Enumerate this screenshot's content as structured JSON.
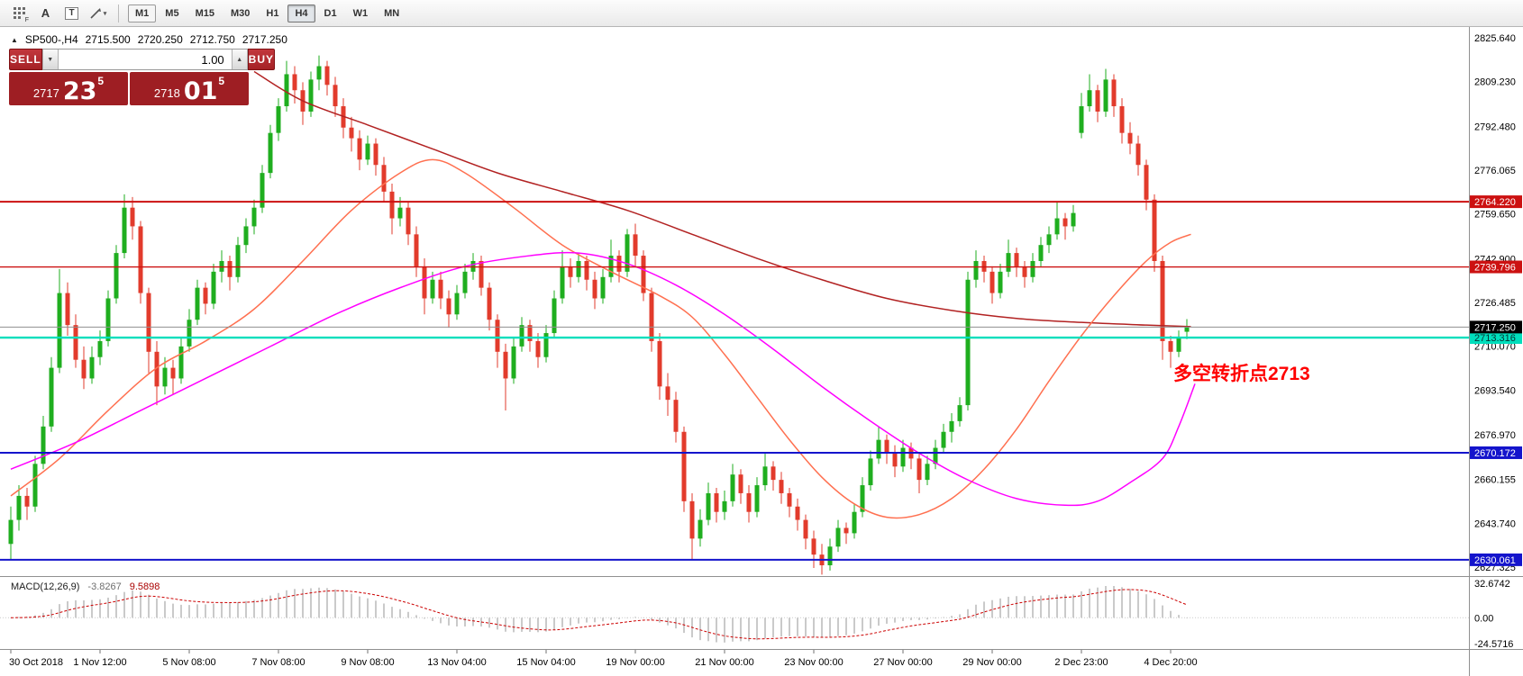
{
  "toolbar": {
    "tools": {
      "grid_badge": "F",
      "arrow_label": "A",
      "text_label": "T"
    },
    "timeframes": [
      {
        "label": "M1",
        "state": "outlined"
      },
      {
        "label": "M5",
        "state": ""
      },
      {
        "label": "M15",
        "state": ""
      },
      {
        "label": "M30",
        "state": ""
      },
      {
        "label": "H1",
        "state": ""
      },
      {
        "label": "H4",
        "state": "active"
      },
      {
        "label": "D1",
        "state": ""
      },
      {
        "label": "W1",
        "state": ""
      },
      {
        "label": "MN",
        "state": ""
      }
    ]
  },
  "chart_header": {
    "symbol_period": "SP500-,H4",
    "open": "2715.500",
    "high": "2720.250",
    "low": "2712.750",
    "close": "2717.250"
  },
  "trade_widget": {
    "sell_label": "SELL",
    "buy_label": "BUY",
    "volume": "1.00",
    "sell_price": {
      "small": "2717",
      "big": "23",
      "sup": "5"
    },
    "buy_price": {
      "small": "2718",
      "big": "01",
      "sup": "5"
    },
    "colors": {
      "button": "#c2383d",
      "button_border": "#7e1013",
      "panel": "#9e1e23"
    }
  },
  "annotation": {
    "text": "多空转折点2713",
    "color": "#ff0000"
  },
  "chart_data": {
    "type": "candlestick",
    "symbol": "SP500-",
    "timeframe": "H4",
    "up_color": "#1fae1f",
    "down_color": "#e23b2c",
    "ylim": [
      2624,
      2830
    ],
    "price_ticks": [
      "2825.640",
      "2809.230",
      "2792.480",
      "2776.065",
      "2759.650",
      "2742.900",
      "2726.485",
      "2710.070",
      "2693.540",
      "2676.970",
      "2660.155",
      "2643.740",
      "2627.325"
    ],
    "current_price": {
      "value": 2717.25,
      "label": "2717.250",
      "line_color": "#8f8f8f",
      "label_bg": "#000000",
      "label_fg": "#ffffff"
    },
    "hlines": [
      {
        "value": 2764.22,
        "label": "2764.220",
        "color": "#cc1111",
        "width": 2,
        "label_bg": "#cc1111",
        "label_fg": "#ffffff"
      },
      {
        "value": 2739.796,
        "label": "2739.796",
        "color": "#cc1111",
        "width": 1.4,
        "label_bg": "#cc1111",
        "label_fg": "#ffffff"
      },
      {
        "value": 2713.316,
        "label": "2713.316",
        "color": "#00debc",
        "width": 2.4,
        "label_bg": "#00debc",
        "label_fg": "#053535"
      },
      {
        "value": 2670.172,
        "label": "2670.172",
        "color": "#1414cc",
        "width": 2,
        "label_bg": "#1414cc",
        "label_fg": "#ffffff"
      },
      {
        "value": 2630.061,
        "label": "2630.061",
        "color": "#1414cc",
        "width": 2,
        "label_bg": "#1414cc",
        "label_fg": "#ffffff"
      }
    ],
    "moving_averages": [
      {
        "name": "slow-ma-red",
        "color": "#b22222",
        "points": [
          [
            30,
            2813
          ],
          [
            36,
            2802
          ],
          [
            44,
            2793
          ],
          [
            52,
            2784
          ],
          [
            60,
            2775
          ],
          [
            68,
            2768
          ],
          [
            76,
            2761
          ],
          [
            84,
            2752
          ],
          [
            92,
            2743
          ],
          [
            100,
            2735
          ],
          [
            108,
            2728
          ],
          [
            116,
            2723.5
          ],
          [
            124,
            2720.5
          ],
          [
            132,
            2719
          ],
          [
            140,
            2718
          ],
          [
            145.5,
            2717.4
          ]
        ]
      },
      {
        "name": "mid-ma-orange",
        "color": "#ff7050",
        "points": [
          [
            0,
            2654
          ],
          [
            6,
            2668
          ],
          [
            12,
            2686
          ],
          [
            18,
            2702
          ],
          [
            24,
            2712
          ],
          [
            30,
            2724
          ],
          [
            36,
            2742
          ],
          [
            42,
            2761
          ],
          [
            48,
            2775
          ],
          [
            52,
            2780
          ],
          [
            56,
            2775
          ],
          [
            62,
            2762
          ],
          [
            68,
            2748
          ],
          [
            74,
            2738
          ],
          [
            80,
            2729
          ],
          [
            84,
            2721
          ],
          [
            88,
            2707
          ],
          [
            92,
            2691
          ],
          [
            96,
            2675
          ],
          [
            100,
            2661
          ],
          [
            104,
            2651
          ],
          [
            108,
            2646
          ],
          [
            112,
            2647
          ],
          [
            116,
            2653
          ],
          [
            120,
            2664
          ],
          [
            124,
            2679
          ],
          [
            128,
            2697
          ],
          [
            132,
            2714
          ],
          [
            136,
            2729
          ],
          [
            140,
            2742
          ],
          [
            143,
            2749
          ],
          [
            145.5,
            2752
          ]
        ]
      },
      {
        "name": "fast-ma-magenta",
        "color": "#ff00ff",
        "points": [
          [
            0,
            2664
          ],
          [
            8,
            2674
          ],
          [
            16,
            2686
          ],
          [
            24,
            2698
          ],
          [
            32,
            2710
          ],
          [
            40,
            2722
          ],
          [
            48,
            2732
          ],
          [
            56,
            2740
          ],
          [
            64,
            2744
          ],
          [
            70,
            2745
          ],
          [
            76,
            2741
          ],
          [
            82,
            2733
          ],
          [
            88,
            2722
          ],
          [
            94,
            2709
          ],
          [
            100,
            2695
          ],
          [
            106,
            2682
          ],
          [
            112,
            2670
          ],
          [
            118,
            2660
          ],
          [
            124,
            2653
          ],
          [
            130,
            2650.5
          ],
          [
            134,
            2652
          ],
          [
            138,
            2659
          ],
          [
            142,
            2668
          ],
          [
            144,
            2680
          ],
          [
            146,
            2696
          ]
        ]
      }
    ],
    "time_axis": [
      {
        "label": "30 Oct 2018",
        "index": 0
      },
      {
        "label": "1 Nov 12:00",
        "index": 11
      },
      {
        "label": "5 Nov 08:00",
        "index": 22
      },
      {
        "label": "7 Nov 08:00",
        "index": 33
      },
      {
        "label": "9 Nov 08:00",
        "index": 44
      },
      {
        "label": "13 Nov 04:00",
        "index": 55
      },
      {
        "label": "15 Nov 04:00",
        "index": 66
      },
      {
        "label": "19 Nov 00:00",
        "index": 77
      },
      {
        "label": "21 Nov 00:00",
        "index": 88
      },
      {
        "label": "23 Nov 00:00",
        "index": 99
      },
      {
        "label": "27 Nov 00:00",
        "index": 110
      },
      {
        "label": "29 Nov 00:00",
        "index": 121
      },
      {
        "label": "2 Dec 23:00",
        "index": 132
      },
      {
        "label": "4 Dec 20:00",
        "index": 143
      }
    ],
    "macd": {
      "title": "MACD(12,26,9)",
      "params": [
        12,
        26,
        9
      ],
      "main_value": "-3.8267",
      "signal_value": "9.5898",
      "axis_labels": [
        "32.6742",
        "0.00",
        "-24.5716"
      ],
      "range": [
        -27,
        36
      ],
      "bar_color": "#b9b9b9",
      "signal_color": "#cc0000"
    },
    "candles": [
      [
        2636,
        2650,
        2630,
        2645
      ],
      [
        2645,
        2658,
        2641,
        2654
      ],
      [
        2654,
        2657,
        2645,
        2650
      ],
      [
        2650,
        2669,
        2648,
        2666
      ],
      [
        2666,
        2684,
        2664,
        2680
      ],
      [
        2680,
        2706,
        2678,
        2702
      ],
      [
        2702,
        2739,
        2700,
        2730
      ],
      [
        2730,
        2734,
        2714,
        2718
      ],
      [
        2718,
        2722,
        2702,
        2705
      ],
      [
        2705,
        2710,
        2694,
        2698
      ],
      [
        2698,
        2710,
        2696,
        2706
      ],
      [
        2706,
        2716,
        2703,
        2712
      ],
      [
        2712,
        2731,
        2710,
        2728
      ],
      [
        2728,
        2748,
        2726,
        2745
      ],
      [
        2745,
        2767,
        2743,
        2762
      ],
      [
        2762,
        2766,
        2750,
        2755
      ],
      [
        2755,
        2757,
        2726,
        2730
      ],
      [
        2730,
        2732,
        2700,
        2708
      ],
      [
        2708,
        2712,
        2688,
        2695
      ],
      [
        2695,
        2706,
        2692,
        2702
      ],
      [
        2702,
        2705,
        2692,
        2698
      ],
      [
        2698,
        2713,
        2696,
        2710
      ],
      [
        2710,
        2724,
        2708,
        2720
      ],
      [
        2720,
        2735,
        2718,
        2732
      ],
      [
        2732,
        2734,
        2722,
        2726
      ],
      [
        2726,
        2741,
        2724,
        2738
      ],
      [
        2738,
        2746,
        2734,
        2742
      ],
      [
        2742,
        2744,
        2731,
        2736
      ],
      [
        2736,
        2751,
        2734,
        2748
      ],
      [
        2748,
        2758,
        2745,
        2755
      ],
      [
        2755,
        2765,
        2752,
        2762
      ],
      [
        2762,
        2778,
        2760,
        2775
      ],
      [
        2775,
        2793,
        2773,
        2790
      ],
      [
        2790,
        2803,
        2787,
        2800
      ],
      [
        2800,
        2817,
        2798,
        2812
      ],
      [
        2812,
        2815,
        2801,
        2806
      ],
      [
        2806,
        2809,
        2793,
        2798
      ],
      [
        2798,
        2813,
        2796,
        2810
      ],
      [
        2810,
        2819,
        2806,
        2815
      ],
      [
        2815,
        2817,
        2804,
        2808
      ],
      [
        2808,
        2811,
        2796,
        2800
      ],
      [
        2800,
        2803,
        2788,
        2792
      ],
      [
        2792,
        2796,
        2783,
        2788
      ],
      [
        2788,
        2791,
        2776,
        2780
      ],
      [
        2780,
        2789,
        2778,
        2786
      ],
      [
        2786,
        2788,
        2774,
        2778
      ],
      [
        2778,
        2781,
        2764,
        2768
      ],
      [
        2768,
        2771,
        2752,
        2758
      ],
      [
        2758,
        2766,
        2755,
        2762
      ],
      [
        2762,
        2764,
        2748,
        2752
      ],
      [
        2752,
        2755,
        2736,
        2740
      ],
      [
        2740,
        2743,
        2722,
        2728
      ],
      [
        2728,
        2738,
        2726,
        2735
      ],
      [
        2735,
        2738,
        2724,
        2728
      ],
      [
        2728,
        2731,
        2717,
        2722
      ],
      [
        2722,
        2733,
        2720,
        2730
      ],
      [
        2730,
        2741,
        2728,
        2738
      ],
      [
        2738,
        2745,
        2735,
        2742
      ],
      [
        2742,
        2744,
        2729,
        2732
      ],
      [
        2732,
        2734,
        2716,
        2720
      ],
      [
        2720,
        2722,
        2702,
        2708
      ],
      [
        2708,
        2711,
        2686,
        2698
      ],
      [
        2698,
        2713,
        2696,
        2710
      ],
      [
        2710,
        2721,
        2708,
        2718
      ],
      [
        2718,
        2720,
        2708,
        2712
      ],
      [
        2712,
        2715,
        2702,
        2706
      ],
      [
        2706,
        2718,
        2704,
        2715
      ],
      [
        2715,
        2731,
        2713,
        2728
      ],
      [
        2728,
        2746,
        2726,
        2740
      ],
      [
        2740,
        2743,
        2732,
        2736
      ],
      [
        2736,
        2745,
        2734,
        2742
      ],
      [
        2742,
        2744,
        2731,
        2735
      ],
      [
        2735,
        2738,
        2724,
        2728
      ],
      [
        2728,
        2739,
        2726,
        2736
      ],
      [
        2736,
        2750,
        2734,
        2744
      ],
      [
        2744,
        2746,
        2734,
        2738
      ],
      [
        2738,
        2754,
        2736,
        2752
      ],
      [
        2752,
        2756,
        2740,
        2744
      ],
      [
        2744,
        2746,
        2727,
        2730
      ],
      [
        2730,
        2732,
        2708,
        2712
      ],
      [
        2712,
        2715,
        2690,
        2695
      ],
      [
        2695,
        2700,
        2684,
        2690
      ],
      [
        2690,
        2693,
        2674,
        2678
      ],
      [
        2678,
        2680,
        2648,
        2652
      ],
      [
        2652,
        2655,
        2630,
        2638
      ],
      [
        2638,
        2649,
        2635,
        2645
      ],
      [
        2645,
        2659,
        2643,
        2655
      ],
      [
        2655,
        2657,
        2644,
        2648
      ],
      [
        2648,
        2656,
        2645,
        2652
      ],
      [
        2652,
        2666,
        2650,
        2662
      ],
      [
        2662,
        2664,
        2651,
        2655
      ],
      [
        2655,
        2658,
        2644,
        2648
      ],
      [
        2648,
        2661,
        2646,
        2658
      ],
      [
        2658,
        2670,
        2656,
        2665
      ],
      [
        2665,
        2667,
        2656,
        2660
      ],
      [
        2660,
        2663,
        2651,
        2655
      ],
      [
        2655,
        2657,
        2646,
        2650
      ],
      [
        2650,
        2653,
        2641,
        2645
      ],
      [
        2645,
        2647,
        2634,
        2638
      ],
      [
        2638,
        2641,
        2627,
        2632
      ],
      [
        2632,
        2636,
        2624.5,
        2628
      ],
      [
        2628,
        2638,
        2626,
        2635
      ],
      [
        2635,
        2645,
        2633,
        2642
      ],
      [
        2642,
        2644,
        2636,
        2640
      ],
      [
        2640,
        2651,
        2638,
        2648
      ],
      [
        2648,
        2661,
        2646,
        2658
      ],
      [
        2658,
        2671,
        2656,
        2668
      ],
      [
        2668,
        2680,
        2666,
        2675
      ],
      [
        2675,
        2677,
        2666,
        2670
      ],
      [
        2670,
        2673,
        2661,
        2665
      ],
      [
        2665,
        2675,
        2663,
        2672
      ],
      [
        2672,
        2674,
        2664,
        2668
      ],
      [
        2668,
        2670,
        2655,
        2660
      ],
      [
        2660,
        2669,
        2658,
        2666
      ],
      [
        2666,
        2675,
        2664,
        2672
      ],
      [
        2672,
        2681,
        2670,
        2678
      ],
      [
        2678,
        2685,
        2674,
        2682
      ],
      [
        2682,
        2691,
        2680,
        2688
      ],
      [
        2688,
        2738,
        2686,
        2735
      ],
      [
        2735,
        2746,
        2732,
        2742
      ],
      [
        2742,
        2744,
        2734,
        2738
      ],
      [
        2738,
        2740,
        2726,
        2730
      ],
      [
        2730,
        2741,
        2728,
        2738
      ],
      [
        2738,
        2750,
        2736,
        2745
      ],
      [
        2745,
        2747,
        2736,
        2740
      ],
      [
        2740,
        2742,
        2732,
        2736
      ],
      [
        2736,
        2745,
        2734,
        2742
      ],
      [
        2742,
        2751,
        2740,
        2748
      ],
      [
        2748,
        2755,
        2745,
        2752
      ],
      [
        2752,
        2764,
        2750,
        2758
      ],
      [
        2758,
        2760,
        2750,
        2755
      ],
      [
        2755,
        2763,
        2753,
        2760
      ],
      [
        2790,
        2805,
        2788,
        2800
      ],
      [
        2800,
        2812,
        2798,
        2806
      ],
      [
        2806,
        2808,
        2794,
        2798
      ],
      [
        2798,
        2814,
        2796,
        2810
      ],
      [
        2810,
        2812,
        2796,
        2800
      ],
      [
        2800,
        2803,
        2786,
        2790
      ],
      [
        2790,
        2794,
        2782,
        2786
      ],
      [
        2786,
        2789,
        2774,
        2778
      ],
      [
        2778,
        2780,
        2761,
        2765
      ],
      [
        2765,
        2767,
        2738,
        2742
      ],
      [
        2742,
        2744,
        2705,
        2712
      ],
      [
        2712,
        2714,
        2702,
        2708
      ],
      [
        2708,
        2716,
        2706,
        2713
      ],
      [
        2715.5,
        2720.25,
        2712.75,
        2717.25
      ]
    ]
  }
}
